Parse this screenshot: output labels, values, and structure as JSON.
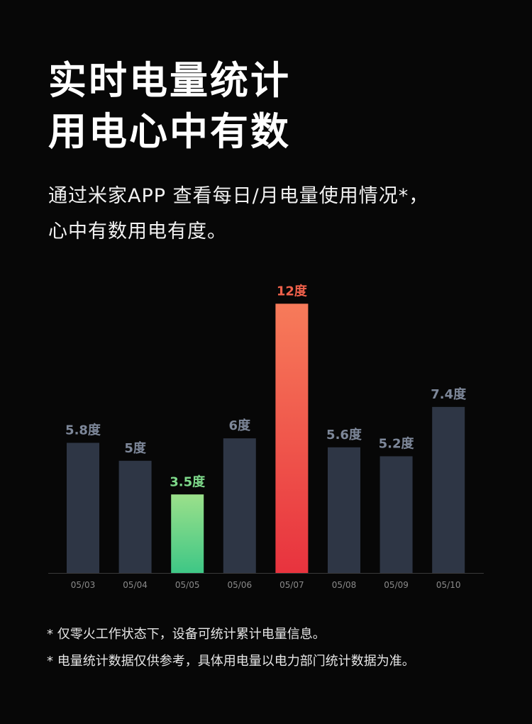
{
  "headline": {
    "line1": "实时电量统计",
    "line2": "用电心中有数"
  },
  "subtitle": {
    "line1": "通过米家APP 查看每日/月电量使用情况*，",
    "line2": "心中有数用电有度。"
  },
  "colors": {
    "background": "#070707",
    "bar_default": "#2e3645",
    "label_default": "#7d8799",
    "highlight_high_top": "#f77b5a",
    "highlight_high_bottom": "#e8333e",
    "highlight_high_label": "#f0614b",
    "highlight_low_top": "#9be08a",
    "highlight_low_bottom": "#3ec786",
    "highlight_low_label": "#7ed98a",
    "axis": "#3a3a3a",
    "tick": "#8a8a8a"
  },
  "chart_data": {
    "type": "bar",
    "categories": [
      "05/03",
      "05/04",
      "05/05",
      "05/06",
      "05/07",
      "05/08",
      "05/09",
      "05/10"
    ],
    "values": [
      5.8,
      5,
      3.5,
      6,
      12,
      5.6,
      5.2,
      7.4
    ],
    "data_labels": [
      "5.8度",
      "5度",
      "3.5度",
      "6度",
      "12度",
      "5.6度",
      "5.2度",
      "7.4度"
    ],
    "highlight": [
      "none",
      "none",
      "low",
      "none",
      "high",
      "none",
      "none",
      "none"
    ],
    "title": "",
    "xlabel": "",
    "ylabel": "",
    "ylim": [
      0,
      12.8
    ],
    "grid": false,
    "legend": "none"
  },
  "notes": {
    "line1": "* 仅零火工作状态下，设备可统计累计电量信息。",
    "line2": "* 电量统计数据仅供参考，具体用电量以电力部门统计数据为准。"
  }
}
